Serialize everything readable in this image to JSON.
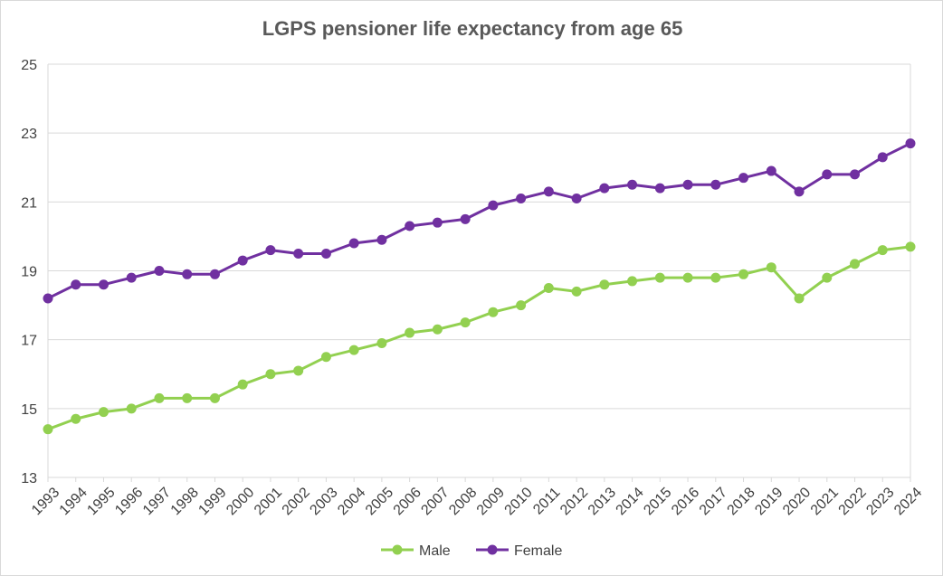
{
  "chart_data": {
    "type": "line",
    "title": "LGPS pensioner life expectancy from age 65",
    "xlabel": "",
    "ylabel": "",
    "ylim": [
      13,
      25
    ],
    "yticks": [
      13,
      15,
      17,
      19,
      21,
      23,
      25
    ],
    "grid": true,
    "legend_position": "bottom",
    "x": [
      "1993",
      "1994",
      "1995",
      "1996",
      "1997",
      "1998",
      "1999",
      "2000",
      "2001",
      "2002",
      "2003",
      "2004",
      "2005",
      "2006",
      "2007",
      "2008",
      "2009",
      "2010",
      "2011",
      "2012",
      "2013",
      "2014",
      "2015",
      "2016",
      "2017",
      "2018",
      "2019",
      "2020",
      "2021",
      "2022",
      "2023",
      "2024"
    ],
    "series": [
      {
        "name": "Male",
        "color": "#92d050",
        "values": [
          14.4,
          14.7,
          14.9,
          15.0,
          15.3,
          15.3,
          15.3,
          15.7,
          16.0,
          16.1,
          16.5,
          16.7,
          16.9,
          17.2,
          17.3,
          17.5,
          17.8,
          18.0,
          18.5,
          18.4,
          18.6,
          18.7,
          18.8,
          18.8,
          18.8,
          18.9,
          19.1,
          18.2,
          18.8,
          19.2,
          19.6,
          19.7
        ]
      },
      {
        "name": "Female",
        "color": "#7030a0",
        "values": [
          18.2,
          18.6,
          18.6,
          18.8,
          19.0,
          18.9,
          18.9,
          19.3,
          19.6,
          19.5,
          19.5,
          19.8,
          19.9,
          20.3,
          20.4,
          20.5,
          20.9,
          21.1,
          21.3,
          21.1,
          21.4,
          21.5,
          21.4,
          21.5,
          21.5,
          21.7,
          21.9,
          21.3,
          21.8,
          21.8,
          22.3,
          22.7
        ]
      }
    ]
  }
}
